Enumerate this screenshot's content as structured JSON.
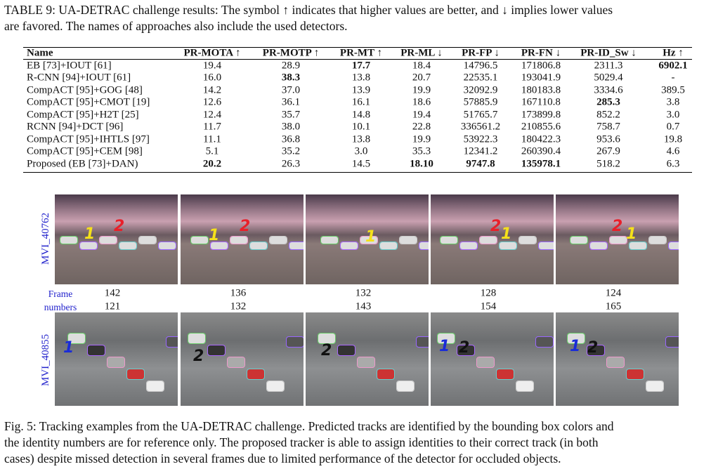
{
  "table_caption": [
    "TABLE 9: UA-DETRAC challenge results: The symbol ↑ indicates that higher values are better, and ↓ implies lower values",
    "are favored. The names of approaches also include the used detectors."
  ],
  "table": {
    "header": [
      "Name",
      "PR-MOTA ↑",
      "PR-MOTP ↑",
      "PR-MT ↑",
      "PR-ML ↓",
      "PR-FP ↓",
      "PR-FN ↓",
      "PR-ID_Sw ↓",
      "Hz ↑"
    ],
    "rows": [
      [
        "EB [73]+IOUT [61]",
        "19.4",
        "28.9",
        "17.7",
        "18.4",
        "14796.5",
        "171806.8",
        "2311.3",
        "6902.1"
      ],
      [
        "R-CNN [94]+IOUT [61]",
        "16.0",
        "38.3",
        "13.8",
        "20.7",
        "22535.1",
        "193041.9",
        "5029.4",
        "-"
      ],
      [
        "CompACT [95]+GOG [48]",
        "14.2",
        "37.0",
        "13.9",
        "19.9",
        "32092.9",
        "180183.8",
        "3334.6",
        "389.5"
      ],
      [
        "CompACT [95]+CMOT [19]",
        "12.6",
        "36.1",
        "16.1",
        "18.6",
        "57885.9",
        "167110.8",
        "285.3",
        "3.8"
      ],
      [
        "CompACT [95]+H2T [25]",
        "12.4",
        "35.7",
        "14.8",
        "19.4",
        "51765.7",
        "173899.8",
        "852.2",
        "3.0"
      ],
      [
        "RCNN [94]+DCT [96]",
        "11.7",
        "38.0",
        "10.1",
        "22.8",
        "336561.2",
        "210855.6",
        "758.7",
        "0.7"
      ],
      [
        "CompACT [95]+IHTLS [97]",
        "11.1",
        "36.8",
        "13.8",
        "19.9",
        "53922.3",
        "180422.3",
        "953.6",
        "19.8"
      ],
      [
        "CompACT [95]+CEM [98]",
        "5.1",
        "35.2",
        "3.0",
        "35.3",
        "12341.2",
        "260390.4",
        "267.9",
        "4.6"
      ],
      [
        "Proposed (EB [73]+DAN)",
        "20.2",
        "26.3",
        "14.5",
        "18.10",
        "9747.8",
        "135978.1",
        "518.2",
        "6.3"
      ]
    ]
  },
  "figure": {
    "sequences": [
      {
        "label": "MVI_40762",
        "frames": [
          "142",
          "136",
          "132",
          "128",
          "124"
        ],
        "ids": [
          [
            {
              "label": "1",
              "color": "#f5e11a"
            },
            {
              "label": "2",
              "color": "#e8202a"
            }
          ],
          [
            {
              "label": "1",
              "color": "#f5e11a"
            },
            {
              "label": "2",
              "color": "#e8202a"
            }
          ],
          [
            {
              "label": "1",
              "color": "#f5e11a"
            }
          ],
          [
            {
              "label": "2",
              "color": "#e8202a"
            },
            {
              "label": "1",
              "color": "#f5e11a"
            }
          ],
          [
            {
              "label": "2",
              "color": "#e8202a"
            },
            {
              "label": "1",
              "color": "#f5e11a"
            }
          ]
        ]
      },
      {
        "label": "MVI_40855",
        "frames": [
          "121",
          "132",
          "143",
          "154",
          "165"
        ],
        "ids": [
          [
            {
              "label": "1",
              "color": "#1a2cd8"
            }
          ],
          [
            {
              "label": "2",
              "color": "#111111"
            }
          ],
          [
            {
              "label": "2",
              "color": "#111111"
            }
          ],
          [
            {
              "label": "1",
              "color": "#1a2cd8"
            },
            {
              "label": "2",
              "color": "#111111"
            }
          ],
          [
            {
              "label": "1",
              "color": "#1a2cd8"
            },
            {
              "label": "2",
              "color": "#111111"
            }
          ]
        ]
      }
    ],
    "frame_label": [
      "Frame",
      "numbers"
    ]
  },
  "figure_caption": [
    "Fig. 5: Tracking examples from the UA-DETRAC challenge. Predicted tracks are identified by the bounding box colors and",
    "the identity numbers are for reference only. The proposed tracker is able to assign identities to their correct track (in both",
    "cases) despite missed detection in several frames due to limited performance of the detector for occluded objects."
  ]
}
